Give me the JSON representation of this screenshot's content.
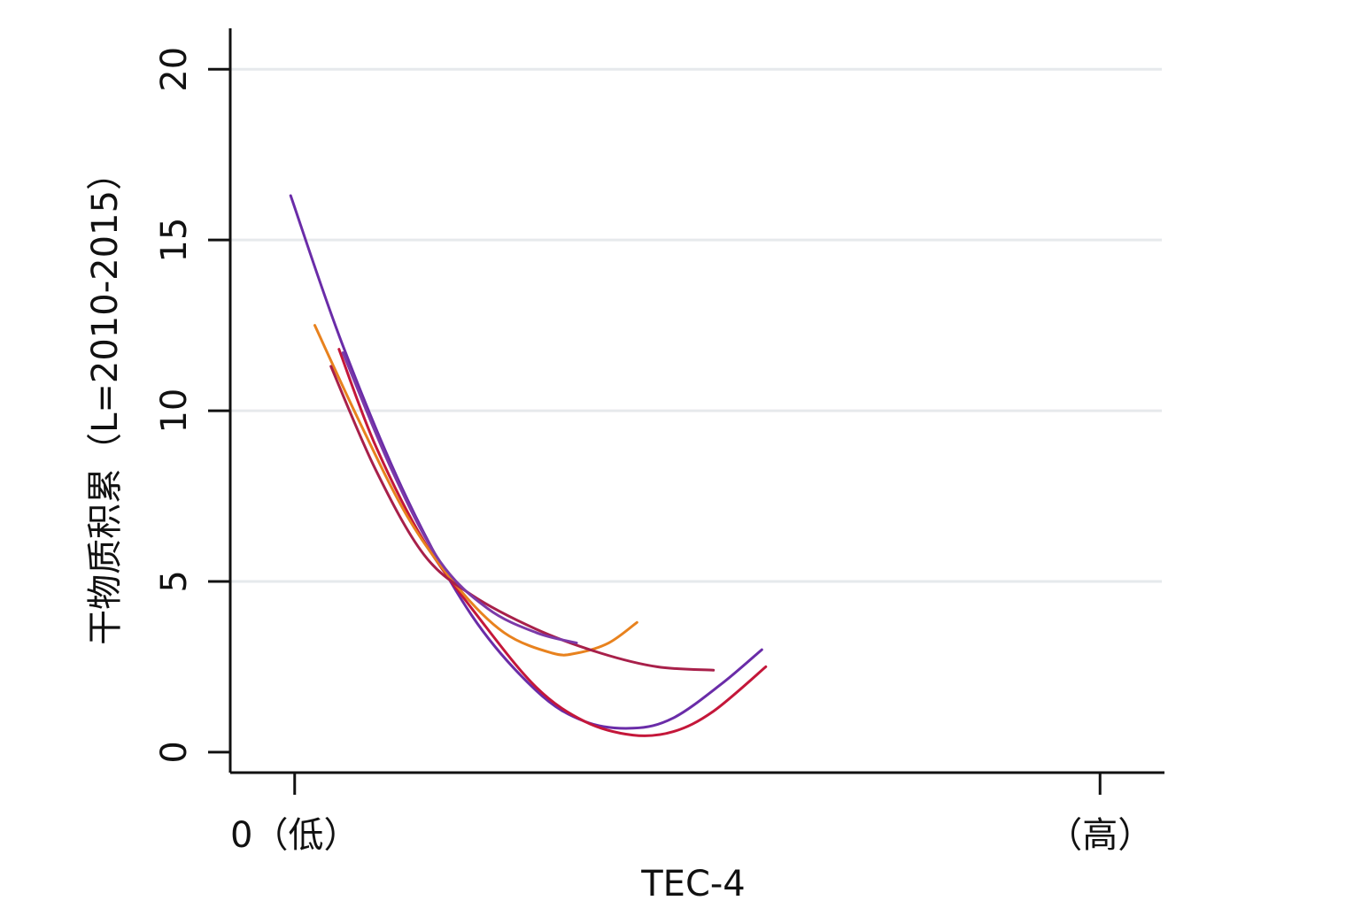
{
  "chart_data": {
    "type": "line",
    "title": "",
    "xlabel": "TEC-4",
    "ylabel": "干物质积累（L=2010-2015）",
    "xlim": [
      -0.08,
      1.08
    ],
    "ylim": [
      -0.6,
      21.2
    ],
    "x_ticks": [
      {
        "value": 0,
        "label": "0（低）"
      },
      {
        "value": 1,
        "label": "（高）"
      }
    ],
    "y_ticks": [
      0,
      5,
      10,
      15,
      20
    ],
    "grid": {
      "horizontal": true,
      "vertical": false
    },
    "colors": {
      "grid": "#e6e9ec",
      "axis": "#111111"
    },
    "series": [
      {
        "color": "#6a2ca8",
        "x": [
          -0.005,
          0.06,
          0.14,
          0.22,
          0.3,
          0.36,
          0.42,
          0.47,
          0.53,
          0.58
        ],
        "y": [
          16.3,
          11.9,
          7.4,
          4.0,
          1.8,
          0.9,
          0.7,
          1.0,
          2.0,
          3.0
        ]
      },
      {
        "color": "#c4173a",
        "x": [
          0.055,
          0.1,
          0.16,
          0.23,
          0.3,
          0.36,
          0.42,
          0.47,
          0.52,
          0.585
        ],
        "y": [
          11.8,
          9.0,
          6.2,
          3.9,
          1.9,
          0.9,
          0.5,
          0.6,
          1.2,
          2.5
        ]
      },
      {
        "color": "#e8821e",
        "x": [
          0.025,
          0.08,
          0.14,
          0.2,
          0.26,
          0.32,
          0.35,
          0.39,
          0.425
        ],
        "y": [
          12.5,
          9.7,
          6.9,
          4.9,
          3.5,
          2.9,
          2.9,
          3.2,
          3.8
        ]
      },
      {
        "color": "#a8204a",
        "x": [
          0.045,
          0.1,
          0.16,
          0.22,
          0.3,
          0.38,
          0.45,
          0.52
        ],
        "y": [
          11.3,
          8.3,
          5.8,
          4.6,
          3.6,
          2.9,
          2.5,
          2.4
        ]
      },
      {
        "color": "#7b3aa8",
        "x": [
          0.06,
          0.12,
          0.18,
          0.24,
          0.3,
          0.35
        ],
        "y": [
          11.7,
          8.3,
          5.6,
          4.2,
          3.5,
          3.2
        ]
      }
    ]
  }
}
